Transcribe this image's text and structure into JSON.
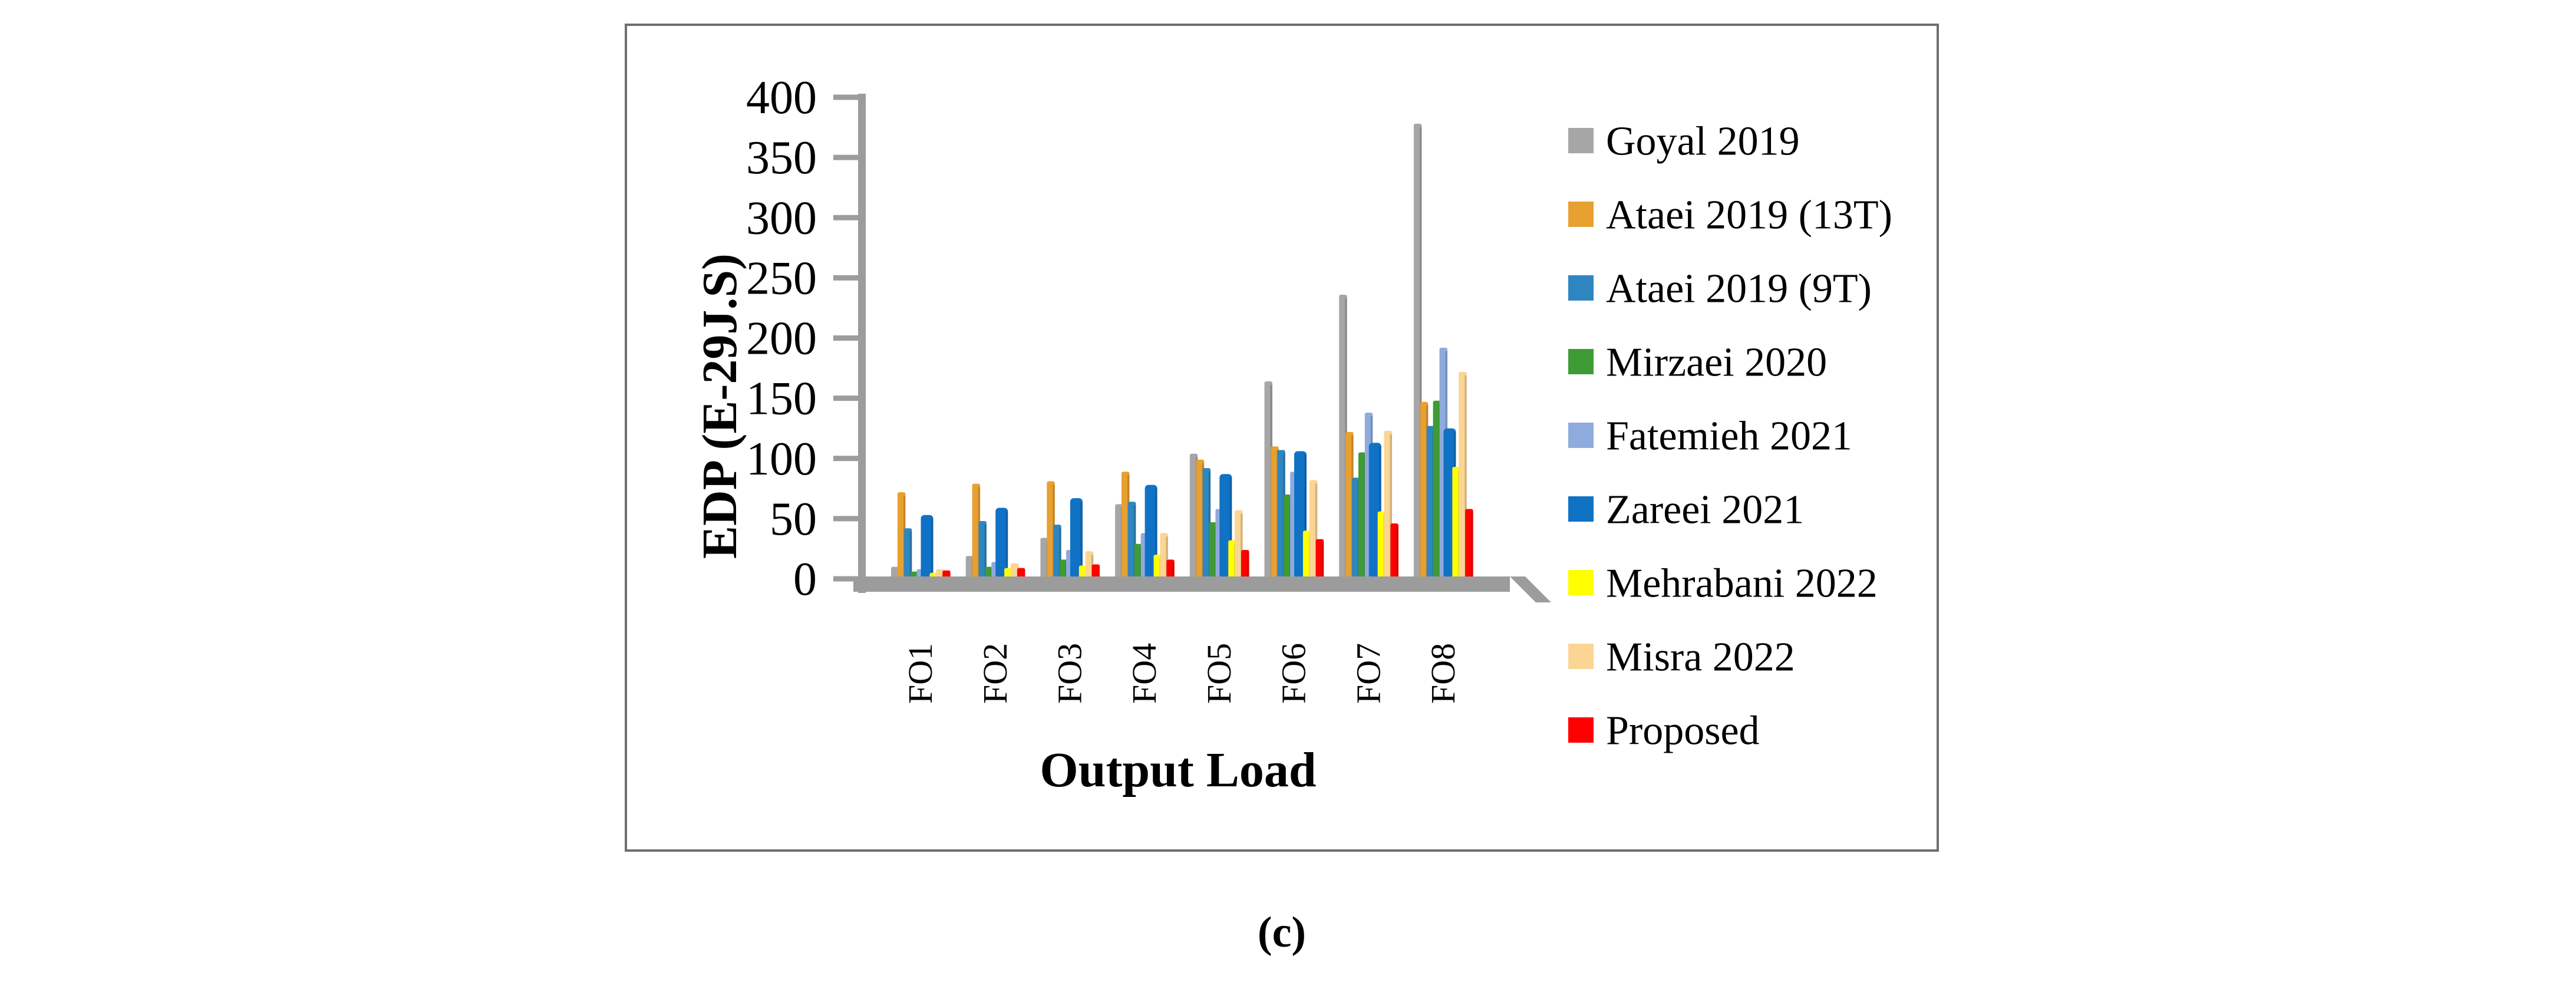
{
  "figure": {
    "caption": "(c)"
  },
  "chart_data": {
    "type": "bar",
    "title": "",
    "xlabel": "Output Load",
    "ylabel": "EDP (E-29J.S)",
    "ylim": [
      0,
      400
    ],
    "y_tick_step": 50,
    "y_ticks": [
      0,
      50,
      100,
      150,
      200,
      250,
      300,
      350,
      400
    ],
    "grid": false,
    "legend_position": "right",
    "axis_color": "#9c9c9c",
    "categories": [
      "FO1",
      "FO2",
      "FO3",
      "FO4",
      "FO5",
      "FO6",
      "FO7",
      "FO8"
    ],
    "series": [
      {
        "name": "Goyal 2019",
        "color": "#a6a6a6",
        "values": [
          10,
          19,
          34,
          62,
          104,
          164,
          236,
          378
        ]
      },
      {
        "name": "Ataei 2019 (13T)",
        "color": "#e8a030",
        "values": [
          72,
          79,
          81,
          89,
          99,
          110,
          122,
          147
        ]
      },
      {
        "name": "Ataei 2019 (9T)",
        "color": "#2e86c1",
        "values": [
          42,
          48,
          45,
          64,
          92,
          107,
          84,
          127
        ]
      },
      {
        "name": "Mirzaei 2020",
        "color": "#3e9b35",
        "values": [
          6,
          10,
          16,
          29,
          47,
          70,
          105,
          148
        ]
      },
      {
        "name": "Fatemieh 2021",
        "color": "#8faadc",
        "values": [
          8,
          14,
          24,
          38,
          58,
          89,
          138,
          192
        ]
      },
      {
        "name": "Zareei 2021",
        "color": "#1072c5",
        "values": [
          53,
          59,
          67,
          78,
          87,
          106,
          113,
          125
        ]
      },
      {
        "name": "Mehrabani 2022",
        "color": "#ffff00",
        "values": [
          5,
          9,
          11,
          20,
          32,
          40,
          56,
          93
        ]
      },
      {
        "name": "Misra 2022",
        "color": "#fad593",
        "values": [
          8,
          13,
          23,
          38,
          57,
          82,
          123,
          172
        ]
      },
      {
        "name": "Proposed",
        "color": "#ff0000",
        "values": [
          7,
          9,
          12,
          16,
          24,
          33,
          46,
          58
        ]
      }
    ]
  }
}
